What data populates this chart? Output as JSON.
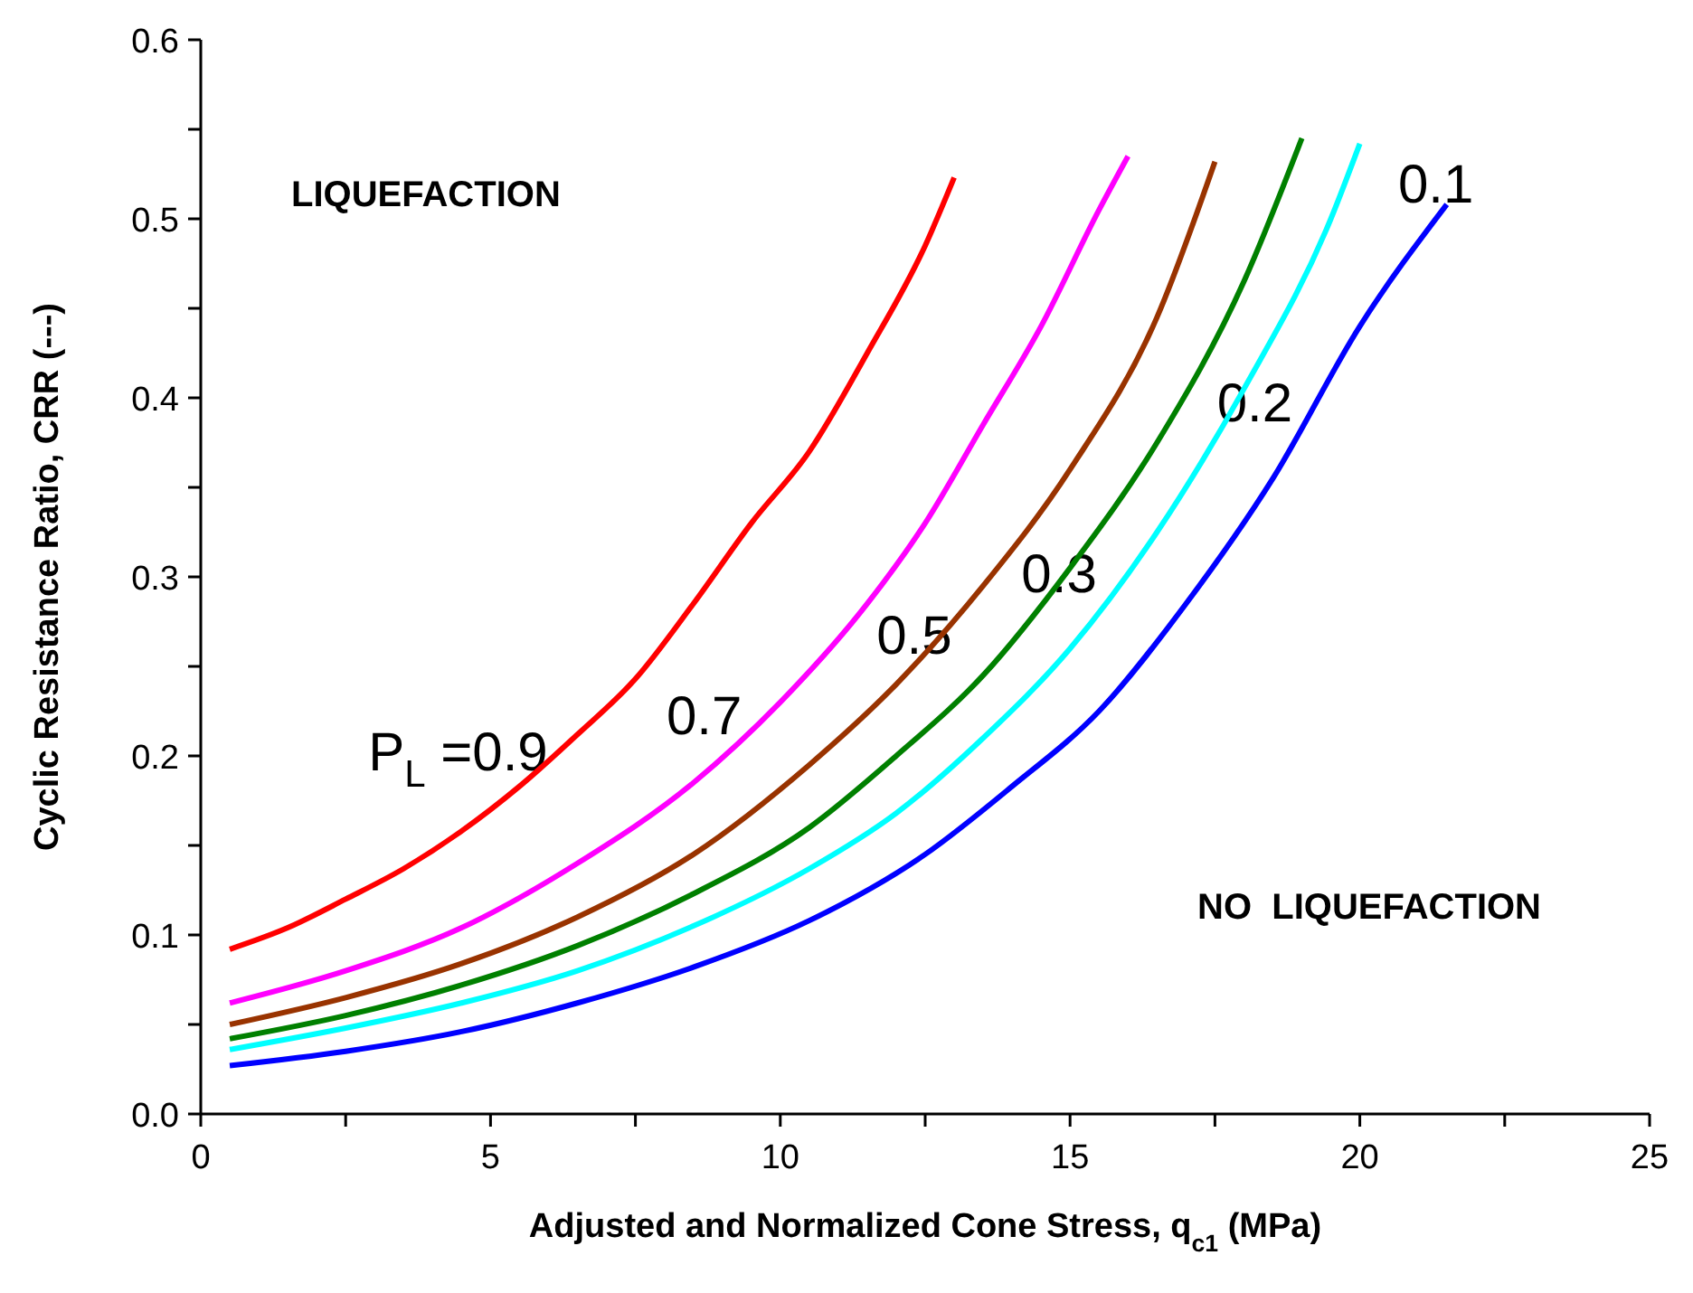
{
  "chart_data": {
    "type": "line",
    "xlabel": "Adjusted and Normalized Cone Stress, q$_{c1}$  (MPa)",
    "ylabel": "Cyclic Resistance Ratio, CRR  (---)",
    "xlim": [
      0,
      25
    ],
    "ylim": [
      0,
      0.6
    ],
    "xticks": [
      0,
      {
        "value": 2.5,
        "label": null
      },
      5,
      {
        "value": 7.5,
        "label": null
      },
      10,
      {
        "value": 12.5,
        "label": null
      },
      15,
      {
        "value": 17.5,
        "label": null
      },
      20,
      {
        "value": 22.5,
        "label": null
      },
      25
    ],
    "yticks": [
      {
        "value": 0,
        "label": "0.0"
      },
      {
        "value": 0.05,
        "label": null
      },
      0.1,
      {
        "value": 0.15,
        "label": null
      },
      0.2,
      {
        "value": 0.25,
        "label": null
      },
      0.3,
      {
        "value": 0.35,
        "label": null
      },
      0.4,
      {
        "value": 0.45,
        "label": null
      },
      0.5,
      {
        "value": 0.55,
        "label": null
      },
      0.6
    ],
    "grid": false,
    "marker": "none",
    "line_style": "solid",
    "series": [
      {
        "name": "P$_{L}$ =0.9",
        "color": "#ff0000",
        "x": [
          0.5,
          1.5,
          2.5,
          3.5,
          4.5,
          5.5,
          6.5,
          7.5,
          8.5,
          9.5,
          10.5,
          11.5,
          12.5,
          13
        ],
        "values": [
          0.092,
          0.104,
          0.12,
          0.137,
          0.158,
          0.183,
          0.212,
          0.243,
          0.285,
          0.33,
          0.37,
          0.425,
          0.485,
          0.523
        ]
      },
      {
        "name": "0.7",
        "color": "#ff00ff",
        "x": [
          0.5,
          2.5,
          4.5,
          6.5,
          8.5,
          10,
          11.5,
          12.5,
          13.5,
          14.5,
          15.5,
          16
        ],
        "values": [
          0.062,
          0.08,
          0.104,
          0.14,
          0.185,
          0.23,
          0.285,
          0.33,
          0.385,
          0.44,
          0.505,
          0.535
        ]
      },
      {
        "name": "0.5",
        "color": "#993300",
        "x": [
          0.5,
          2.5,
          4.5,
          6.5,
          8.5,
          10.5,
          12,
          13.5,
          15,
          16.5,
          17.5
        ],
        "values": [
          0.05,
          0.065,
          0.084,
          0.11,
          0.145,
          0.195,
          0.24,
          0.295,
          0.36,
          0.445,
          0.532
        ]
      },
      {
        "name": "0.3",
        "color": "#008000",
        "x": [
          0.5,
          2.5,
          4.5,
          6.5,
          8.5,
          10.5,
          12,
          13.5,
          15,
          16.5,
          18,
          19
        ],
        "values": [
          0.042,
          0.055,
          0.072,
          0.094,
          0.123,
          0.16,
          0.2,
          0.245,
          0.305,
          0.375,
          0.465,
          0.545
        ]
      },
      {
        "name": "0.2",
        "color": "#00ffff",
        "x": [
          0.5,
          2.5,
          4.5,
          6.5,
          8.5,
          10.5,
          12,
          13.5,
          15,
          16.5,
          18,
          19.5,
          20
        ],
        "values": [
          0.036,
          0.048,
          0.062,
          0.08,
          0.105,
          0.137,
          0.168,
          0.21,
          0.26,
          0.325,
          0.405,
          0.5,
          0.542
        ]
      },
      {
        "name": "0.1",
        "color": "#0000ff",
        "x": [
          0.5,
          2.5,
          4.5,
          6.5,
          8.5,
          10.5,
          12.5,
          14,
          15.5,
          17,
          18.5,
          20,
          21.5
        ],
        "values": [
          0.027,
          0.035,
          0.046,
          0.062,
          0.082,
          0.108,
          0.145,
          0.183,
          0.225,
          0.285,
          0.355,
          0.44,
          0.508
        ]
      }
    ],
    "annotations": [
      "LIQUEFACTION",
      "NO  LIQUEFACTION"
    ]
  }
}
